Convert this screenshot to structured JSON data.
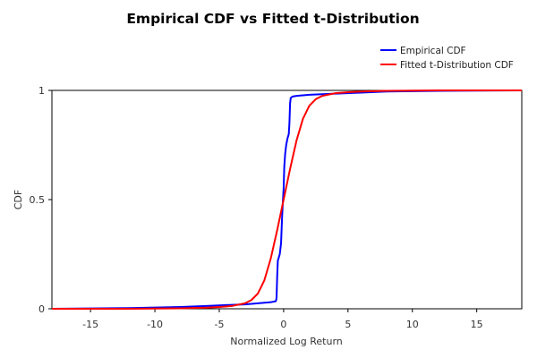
{
  "chart_data": {
    "type": "line",
    "title": "Empirical CDF vs Fitted t-Distribution",
    "xlabel": "Normalized Log Return",
    "ylabel": "CDF",
    "xlim": [
      -18,
      18.5
    ],
    "ylim": [
      0,
      1
    ],
    "x_ticks": [
      -15,
      -10,
      -5,
      0,
      5,
      10,
      15
    ],
    "y_ticks": [
      0,
      0.5,
      1
    ],
    "x_tick_labels": [
      "-15",
      "-10",
      "-5",
      "0",
      "5",
      "10",
      "15"
    ],
    "y_tick_labels": [
      "0",
      "0.5",
      "1"
    ],
    "grid": false,
    "legend_position": "top-right",
    "series": [
      {
        "name": "Empirical CDF",
        "color": "#0000ff",
        "x": [
          -18,
          -12,
          -8,
          -6,
          -4,
          -3,
          -2,
          -1,
          -0.6,
          -0.55,
          -0.5,
          -0.45,
          -0.3,
          -0.2,
          -0.12,
          -0.05,
          0.0,
          0.05,
          0.12,
          0.2,
          0.3,
          0.4,
          0.45,
          0.5,
          0.55,
          0.6,
          0.7,
          1.0,
          2.0,
          4.0,
          6.0,
          8.0,
          12.0,
          18.5
        ],
        "y": [
          0.0,
          0.003,
          0.008,
          0.013,
          0.018,
          0.02,
          0.025,
          0.03,
          0.035,
          0.05,
          0.15,
          0.22,
          0.25,
          0.3,
          0.42,
          0.5,
          0.55,
          0.65,
          0.71,
          0.75,
          0.78,
          0.8,
          0.85,
          0.94,
          0.965,
          0.968,
          0.972,
          0.975,
          0.98,
          0.985,
          0.99,
          0.995,
          0.998,
          1.0
        ]
      },
      {
        "name": "Fitted t-Distribution CDF",
        "color": "#ff0000",
        "x": [
          -18,
          -12,
          -8,
          -6,
          -5,
          -4,
          -3,
          -2.5,
          -2,
          -1.5,
          -1,
          -0.5,
          0,
          0.5,
          1,
          1.5,
          2,
          2.5,
          3,
          4,
          5,
          6,
          8,
          12,
          18.5
        ],
        "y": [
          0.0,
          0.0,
          0.002,
          0.005,
          0.008,
          0.013,
          0.025,
          0.04,
          0.07,
          0.13,
          0.23,
          0.36,
          0.5,
          0.64,
          0.77,
          0.87,
          0.93,
          0.96,
          0.975,
          0.987,
          0.992,
          0.995,
          0.998,
          1.0,
          1.0
        ]
      }
    ]
  }
}
